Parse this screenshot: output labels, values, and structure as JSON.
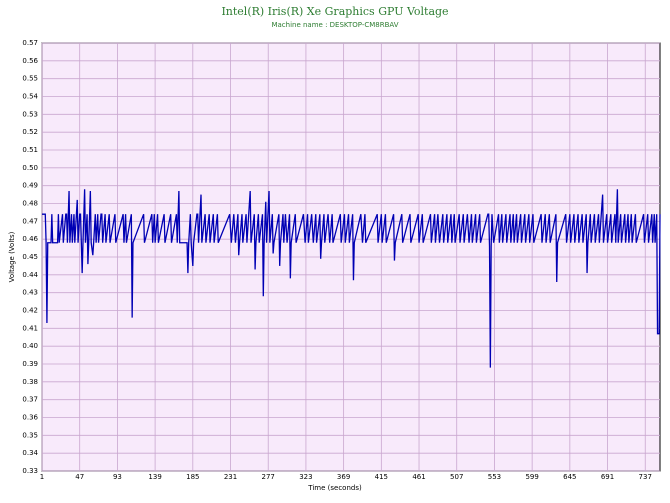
{
  "chart_data": {
    "type": "line",
    "title": "Intel(R) Iris(R) Xe Graphics GPU Voltage",
    "subtitle": "Machine name : DESKTOP-CM8RBAV",
    "xlabel": "Time (seconds)",
    "ylabel": "Voltage (Volts)",
    "color": "#0000b4",
    "grid": true,
    "xlim": [
      1,
      755
    ],
    "xticks": [
      1,
      47,
      93,
      139,
      185,
      231,
      277,
      323,
      369,
      415,
      461,
      507,
      553,
      599,
      645,
      691,
      737
    ],
    "ylim": [
      0.33,
      0.57
    ],
    "yticks": [
      0.33,
      0.34,
      0.35,
      0.36,
      0.37,
      0.38,
      0.39,
      {
        "value": 0.4,
        "label": "0.40"
      },
      0.41,
      0.42,
      0.43,
      0.44,
      0.45,
      0.46,
      0.47,
      0.48,
      0.49,
      {
        "value": 0.5,
        "label": "0.50"
      },
      0.51,
      0.52,
      0.53,
      0.54,
      0.55,
      0.56,
      0.57
    ],
    "x": [
      1,
      5,
      6,
      7,
      8,
      12,
      13,
      14,
      20,
      21,
      22,
      26,
      27,
      30,
      31,
      32,
      34,
      35,
      37,
      38,
      40,
      41,
      44,
      45,
      47,
      48,
      49,
      50,
      51,
      53,
      54,
      56,
      57,
      58,
      60,
      61,
      63,
      64,
      66,
      67,
      69,
      70,
      73,
      74,
      75,
      78,
      79,
      83,
      84,
      90,
      91,
      100,
      101,
      103,
      104,
      110,
      111,
      112,
      125,
      126,
      135,
      136,
      138,
      139,
      142,
      143,
      150,
      151,
      158,
      159,
      165,
      166,
      168,
      169,
      178,
      179,
      180,
      182,
      183,
      185,
      186,
      190,
      191,
      192,
      195,
      196,
      200,
      201,
      205,
      206,
      210,
      211,
      215,
      216,
      230,
      232,
      235,
      237,
      240,
      241,
      242,
      245,
      246,
      250,
      251,
      255,
      256,
      260,
      261,
      262,
      265,
      266,
      270,
      271,
      272,
      274,
      275,
      278,
      279,
      282,
      283,
      284,
      290,
      291,
      292,
      295,
      296,
      298,
      300,
      303,
      304,
      305,
      310,
      311,
      320,
      322,
      325,
      326,
      330,
      332,
      335,
      336,
      340,
      341,
      342,
      345,
      346,
      350,
      352,
      355,
      356,
      365,
      366,
      370,
      371,
      375,
      376,
      380,
      381,
      382,
      390,
      392,
      395,
      396,
      410,
      411,
      415,
      416,
      420,
      421,
      430,
      431,
      432,
      440,
      441,
      450,
      451,
      460,
      461,
      465,
      466,
      475,
      476,
      480,
      481,
      484,
      486,
      490,
      491,
      495,
      496,
      500,
      501,
      504,
      505,
      510,
      511,
      515,
      516,
      520,
      522,
      525,
      526,
      530,
      531,
      535,
      536,
      545,
      546,
      547,
      548,
      549,
      550,
      552,
      558,
      559,
      562,
      563,
      567,
      568,
      572,
      573,
      576,
      577,
      580,
      581,
      585,
      586,
      590,
      591,
      595,
      596,
      600,
      601,
      610,
      611,
      615,
      616,
      620,
      621,
      628,
      629,
      630,
      640,
      641,
      645,
      646,
      650,
      651,
      655,
      656,
      660,
      661,
      665,
      666,
      667,
      670,
      671,
      675,
      676,
      680,
      681,
      685,
      686,
      690,
      691,
      695,
      696,
      700,
      701,
      703,
      704,
      707,
      708,
      712,
      713,
      716,
      717,
      720,
      721,
      725,
      726,
      735,
      736,
      740,
      741,
      745,
      746,
      748,
      749,
      751,
      752,
      754,
      755
    ],
    "values": [
      0.474,
      0.474,
      0.458,
      0.413,
      0.458,
      0.458,
      0.474,
      0.458,
      0.458,
      0.474,
      0.458,
      0.474,
      0.458,
      0.474,
      0.474,
      0.458,
      0.487,
      0.458,
      0.474,
      0.458,
      0.474,
      0.458,
      0.482,
      0.458,
      0.474,
      0.474,
      0.458,
      0.441,
      0.458,
      0.488,
      0.458,
      0.474,
      0.446,
      0.458,
      0.487,
      0.458,
      0.451,
      0.458,
      0.474,
      0.458,
      0.474,
      0.458,
      0.474,
      0.474,
      0.458,
      0.474,
      0.458,
      0.474,
      0.458,
      0.474,
      0.458,
      0.474,
      0.458,
      0.474,
      0.458,
      0.474,
      0.416,
      0.458,
      0.474,
      0.458,
      0.474,
      0.458,
      0.474,
      0.458,
      0.474,
      0.458,
      0.474,
      0.458,
      0.474,
      0.458,
      0.474,
      0.458,
      0.487,
      0.458,
      0.458,
      0.441,
      0.458,
      0.474,
      0.458,
      0.445,
      0.458,
      0.474,
      0.474,
      0.458,
      0.485,
      0.458,
      0.474,
      0.458,
      0.474,
      0.458,
      0.474,
      0.458,
      0.474,
      0.458,
      0.474,
      0.458,
      0.474,
      0.458,
      0.474,
      0.451,
      0.458,
      0.474,
      0.458,
      0.474,
      0.458,
      0.487,
      0.458,
      0.474,
      0.443,
      0.458,
      0.474,
      0.458,
      0.474,
      0.428,
      0.458,
      0.481,
      0.458,
      0.487,
      0.458,
      0.474,
      0.452,
      0.458,
      0.474,
      0.445,
      0.458,
      0.474,
      0.458,
      0.474,
      0.458,
      0.474,
      0.438,
      0.458,
      0.474,
      0.458,
      0.474,
      0.458,
      0.474,
      0.458,
      0.474,
      0.458,
      0.474,
      0.458,
      0.474,
      0.449,
      0.458,
      0.474,
      0.458,
      0.474,
      0.458,
      0.474,
      0.458,
      0.474,
      0.458,
      0.474,
      0.458,
      0.474,
      0.458,
      0.474,
      0.437,
      0.458,
      0.474,
      0.458,
      0.474,
      0.458,
      0.474,
      0.458,
      0.474,
      0.458,
      0.474,
      0.458,
      0.474,
      0.448,
      0.458,
      0.474,
      0.458,
      0.474,
      0.458,
      0.474,
      0.458,
      0.474,
      0.458,
      0.474,
      0.458,
      0.474,
      0.458,
      0.474,
      0.458,
      0.474,
      0.458,
      0.474,
      0.458,
      0.474,
      0.458,
      0.474,
      0.458,
      0.474,
      0.458,
      0.474,
      0.458,
      0.474,
      0.458,
      0.474,
      0.458,
      0.474,
      0.458,
      0.474,
      0.458,
      0.474,
      0.474,
      0.456,
      0.388,
      0.456,
      0.474,
      0.458,
      0.474,
      0.458,
      0.474,
      0.458,
      0.474,
      0.458,
      0.474,
      0.458,
      0.474,
      0.458,
      0.474,
      0.458,
      0.474,
      0.458,
      0.474,
      0.458,
      0.474,
      0.458,
      0.474,
      0.458,
      0.474,
      0.458,
      0.474,
      0.458,
      0.474,
      0.458,
      0.474,
      0.436,
      0.458,
      0.474,
      0.458,
      0.474,
      0.458,
      0.474,
      0.458,
      0.474,
      0.458,
      0.474,
      0.458,
      0.474,
      0.441,
      0.458,
      0.474,
      0.458,
      0.474,
      0.458,
      0.474,
      0.458,
      0.485,
      0.458,
      0.474,
      0.458,
      0.474,
      0.458,
      0.474,
      0.458,
      0.488,
      0.458,
      0.474,
      0.458,
      0.474,
      0.458,
      0.474,
      0.458,
      0.474,
      0.458,
      0.474,
      0.458,
      0.474,
      0.458,
      0.474,
      0.458,
      0.474,
      0.458,
      0.474,
      0.458,
      0.474,
      0.407,
      0.407,
      0.474
    ]
  }
}
